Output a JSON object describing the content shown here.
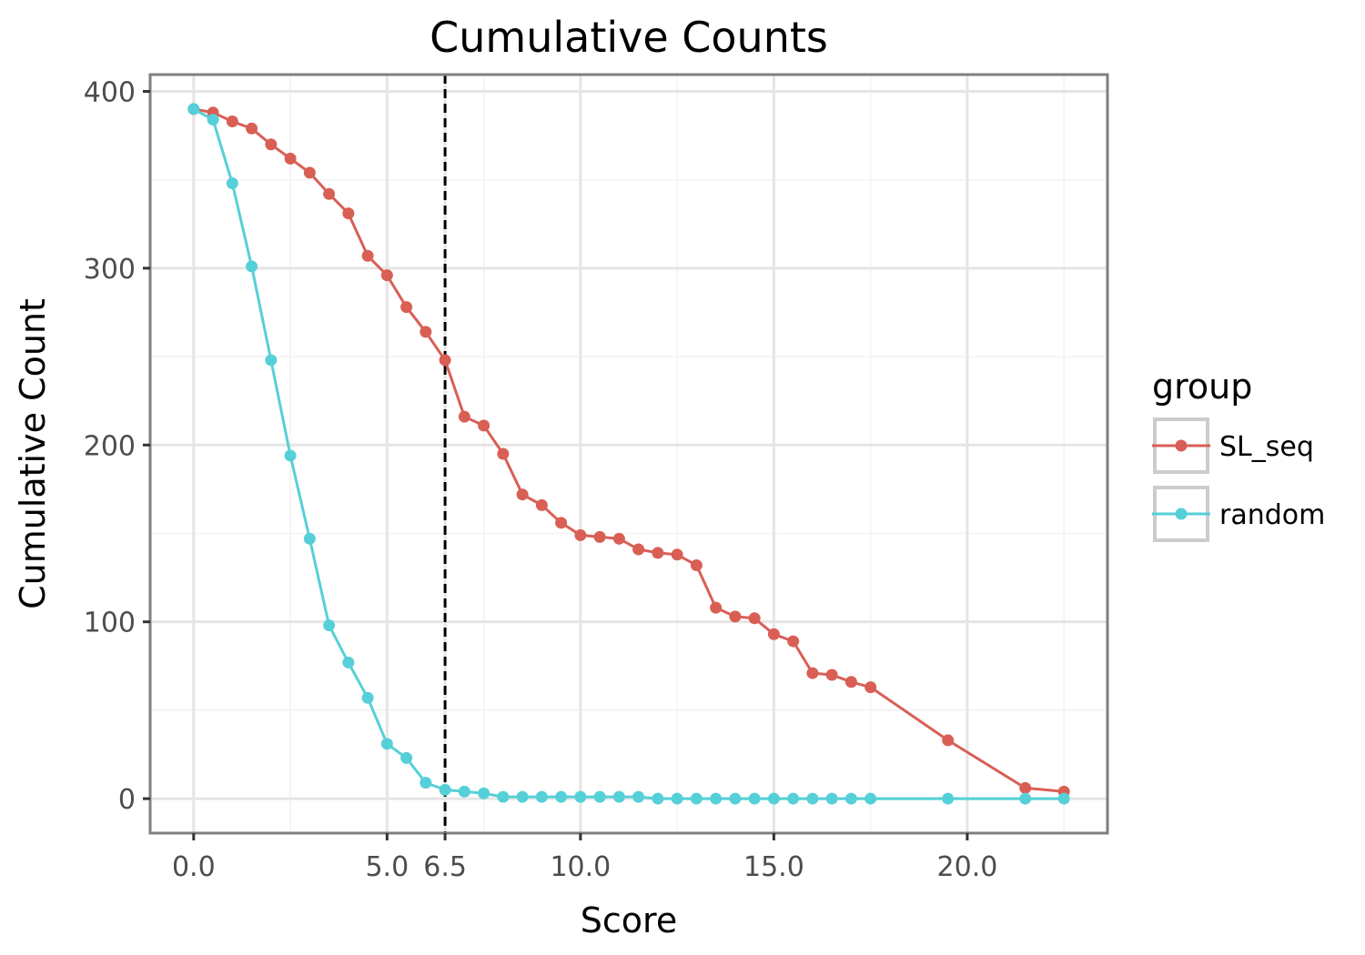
{
  "chart_data": {
    "type": "line",
    "title": "Cumulative Counts",
    "xlabel": "Score",
    "ylabel": "Cumulative Count",
    "xlim": [
      -1.125,
      23.625
    ],
    "ylim": [
      -19.5,
      409.5
    ],
    "x_ticks": [
      0.0,
      5.0,
      6.5,
      10.0,
      15.0,
      20.0
    ],
    "x_tick_labels": [
      "0.0",
      "5.0",
      "6.5",
      "10.0",
      "15.0",
      "20.0"
    ],
    "y_ticks": [
      0,
      100,
      200,
      300,
      400
    ],
    "y_tick_labels": [
      "0",
      "100",
      "200",
      "300",
      "400"
    ],
    "grid": true,
    "reference_line": {
      "x": 6.5,
      "style": "dashed",
      "color": "#000000"
    },
    "legend": {
      "title": "group",
      "position": "right"
    },
    "series": [
      {
        "name": "SL_seq",
        "color": "#d95f55",
        "x": [
          0,
          0.5,
          1,
          1.5,
          2,
          2.5,
          3,
          3.5,
          4,
          4.5,
          5,
          5.5,
          6,
          6.5,
          7,
          7.5,
          8,
          8.5,
          9,
          9.5,
          10,
          10.5,
          11,
          11.5,
          12,
          12.5,
          13,
          13.5,
          14,
          14.5,
          15,
          15.5,
          16,
          16.5,
          17,
          17.5,
          19.5,
          21.5,
          22.5
        ],
        "y": [
          390,
          388,
          383,
          379,
          370,
          362,
          354,
          342,
          331,
          307,
          296,
          278,
          264,
          248,
          216,
          211,
          195,
          172,
          166,
          156,
          149,
          148,
          147,
          141,
          139,
          138,
          132,
          108,
          103,
          102,
          93,
          89,
          71,
          70,
          66,
          63,
          33,
          6,
          4
        ]
      },
      {
        "name": "random",
        "color": "#56d0d8",
        "x": [
          0,
          0.5,
          1,
          1.5,
          2,
          2.5,
          3,
          3.5,
          4,
          4.5,
          5,
          5.5,
          6,
          6.5,
          7,
          7.5,
          8,
          8.5,
          9,
          9.5,
          10,
          10.5,
          11,
          11.5,
          12,
          12.5,
          13,
          13.5,
          14,
          14.5,
          15,
          15.5,
          16,
          16.5,
          17,
          17.5,
          19.5,
          21.5,
          22.5
        ],
        "y": [
          390,
          384,
          348,
          301,
          248,
          194,
          147,
          98,
          77,
          57,
          31,
          23,
          9,
          5,
          4,
          3,
          1,
          1,
          1,
          1,
          1,
          1,
          1,
          1,
          0,
          0,
          0,
          0,
          0,
          0,
          0,
          0,
          0,
          0,
          0,
          0,
          0,
          0,
          0
        ]
      }
    ]
  }
}
